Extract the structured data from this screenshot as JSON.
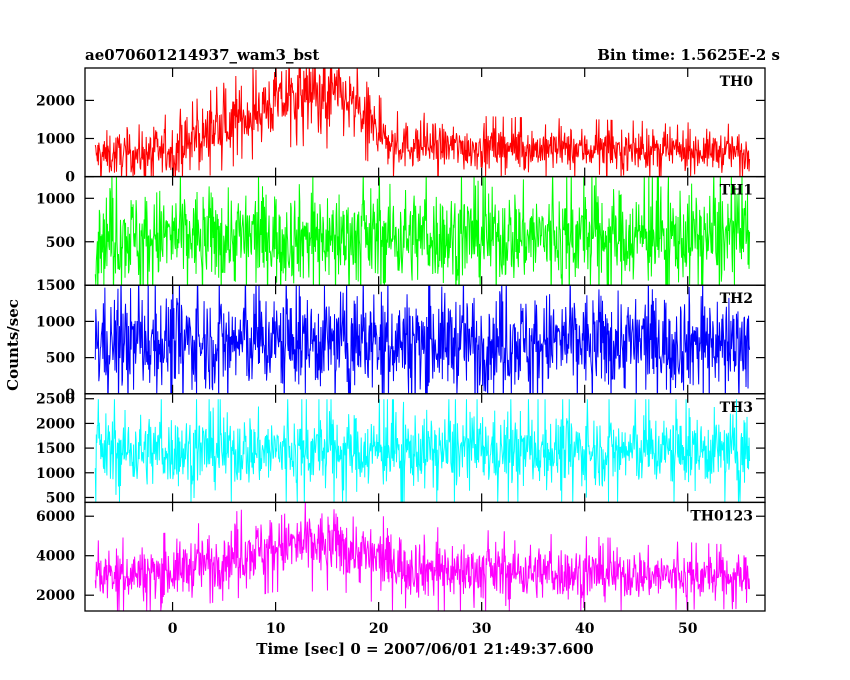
{
  "header": {
    "source_name": "ae070601214937_wam3_bst",
    "bin_time": "Bin time: 1.5625E-2 s"
  },
  "y_axis_label": "Counts/sec",
  "x_axis_label": "Time [sec] 0 = 2007/06/01 21:49:37.600",
  "chart_data": {
    "type": "line",
    "x_range": [
      -8.5,
      57.5
    ],
    "x_ticks": [
      0,
      10,
      20,
      30,
      40,
      50
    ],
    "x_tick_labels": [
      "0",
      "10",
      "20",
      "30",
      "40",
      "50"
    ],
    "panels": [
      {
        "name": "TH0",
        "color": "#ff0000",
        "ylim": [
          0,
          2850
        ],
        "y_ticks": [
          0,
          1000,
          2000
        ],
        "y_tick_labels": [
          "0",
          "1000",
          "2000"
        ],
        "baseline_profile": [
          [
            -7.5,
            550
          ],
          [
            0,
            650
          ],
          [
            4,
            1200
          ],
          [
            8,
            1700
          ],
          [
            12,
            2150
          ],
          [
            16,
            2150
          ],
          [
            19,
            1500
          ],
          [
            21,
            850
          ],
          [
            30,
            750
          ],
          [
            40,
            720
          ],
          [
            56,
            650
          ]
        ],
        "spread_profile": [
          [
            -7.5,
            500
          ],
          [
            10,
            800
          ],
          [
            16,
            900
          ],
          [
            21,
            550
          ],
          [
            56,
            450
          ]
        ]
      },
      {
        "name": "TH1",
        "color": "#00ff00",
        "ylim": [
          0,
          1250
        ],
        "y_ticks": [
          0,
          500,
          1000
        ],
        "y_tick_labels": [
          "0",
          "500",
          "1000"
        ],
        "baseline_profile": [
          [
            -7.5,
            560
          ],
          [
            56,
            560
          ]
        ],
        "spread_profile": [
          [
            -7.5,
            480
          ],
          [
            56,
            480
          ]
        ]
      },
      {
        "name": "TH2",
        "color": "#0000ff",
        "ylim": [
          0,
          1500
        ],
        "y_ticks": [
          0,
          500,
          1000,
          1500
        ],
        "y_tick_labels": [
          "0",
          "500",
          "1000",
          "1500"
        ],
        "baseline_profile": [
          [
            -7.5,
            720
          ],
          [
            56,
            720
          ]
        ],
        "spread_profile": [
          [
            -7.5,
            600
          ],
          [
            56,
            600
          ]
        ]
      },
      {
        "name": "TH3",
        "color": "#00ffff",
        "ylim": [
          400,
          2600
        ],
        "y_ticks": [
          500,
          1000,
          1500,
          2000,
          2500
        ],
        "y_tick_labels": [
          "500",
          "1000",
          "1500",
          "2000",
          "2500"
        ],
        "baseline_profile": [
          [
            -7.5,
            1450
          ],
          [
            56,
            1450
          ]
        ],
        "spread_profile": [
          [
            -7.5,
            650
          ],
          [
            56,
            650
          ]
        ]
      },
      {
        "name": "TH0123",
        "color": "#ff00ff",
        "ylim": [
          1200,
          6700
        ],
        "y_ticks": [
          2000,
          4000,
          6000
        ],
        "y_tick_labels": [
          "2000",
          "4000",
          "6000"
        ],
        "baseline_profile": [
          [
            -7.5,
            3000
          ],
          [
            0,
            3200
          ],
          [
            5,
            3900
          ],
          [
            10,
            4500
          ],
          [
            16,
            4600
          ],
          [
            20,
            3800
          ],
          [
            25,
            3300
          ],
          [
            40,
            3100
          ],
          [
            56,
            2900
          ]
        ],
        "spread_profile": [
          [
            -7.5,
            1100
          ],
          [
            12,
            1500
          ],
          [
            56,
            1000
          ]
        ]
      }
    ]
  }
}
